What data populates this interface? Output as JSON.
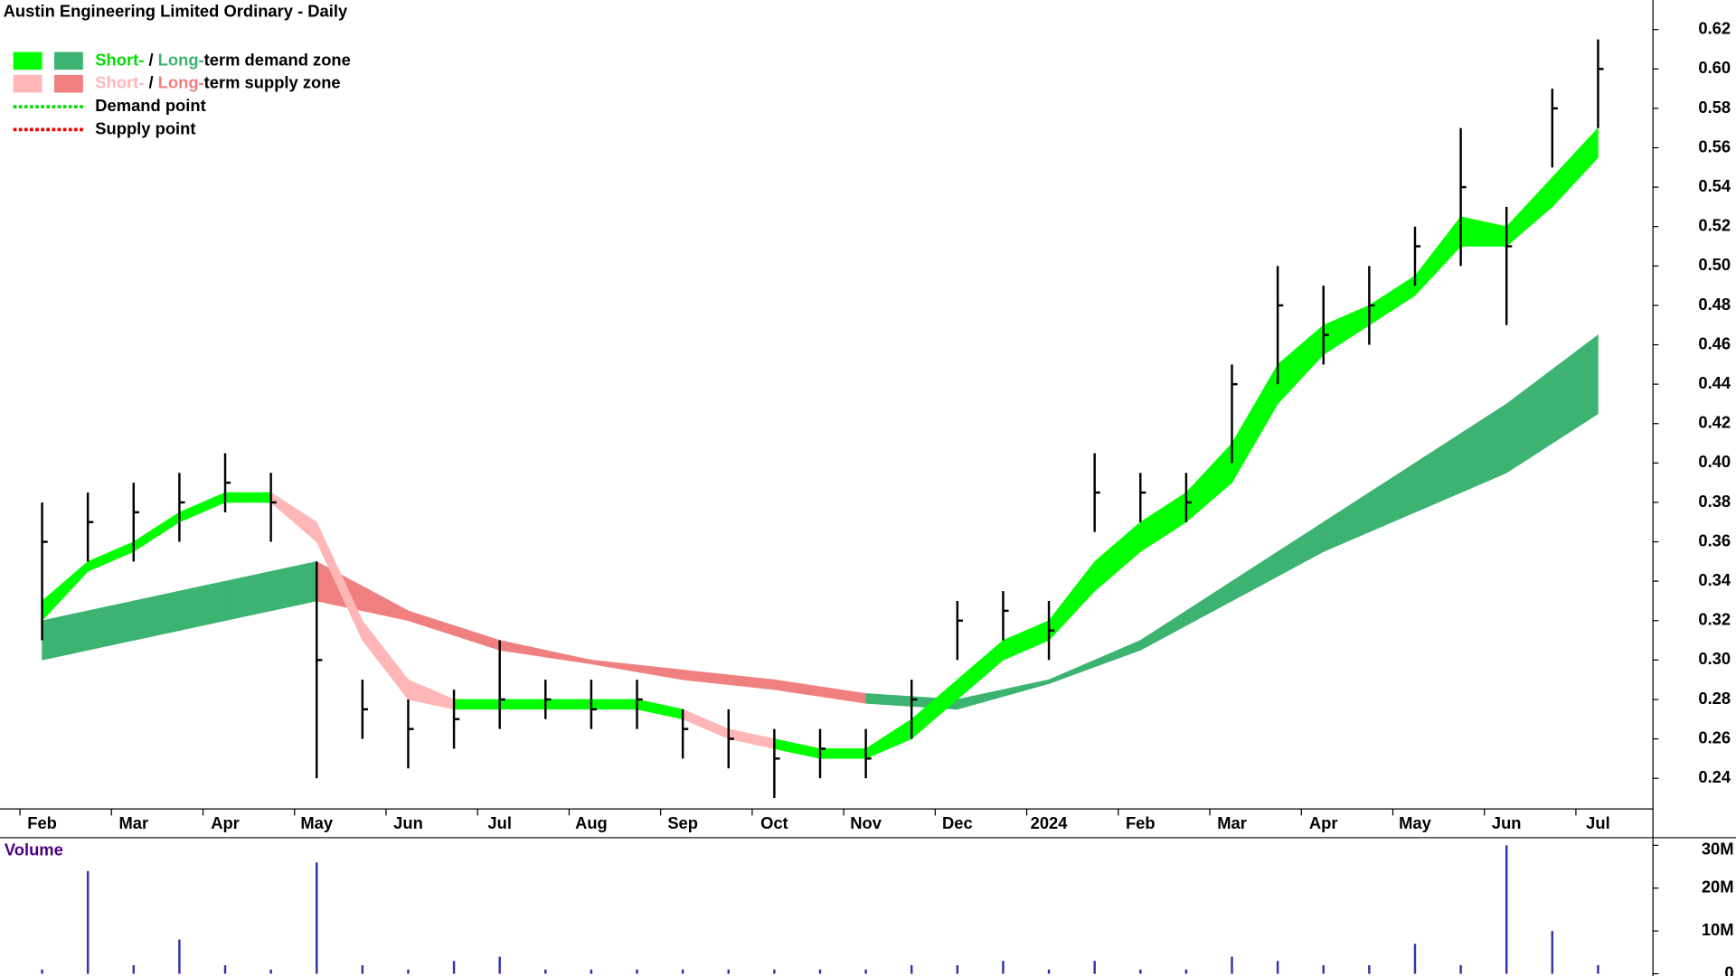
{
  "chart_data": {
    "type": "ohlc",
    "title": "Austin Engineering Limited Ordinary - Daily",
    "legend": [
      {
        "swatches": [
          "#00ff00",
          "#3cb371"
        ],
        "parts": [
          {
            "text": "Short-",
            "color": "#00dd00"
          },
          {
            "text": " / ",
            "color": "#000000"
          },
          {
            "text": "Long-",
            "color": "#3cb371"
          },
          {
            "text": "term demand zone",
            "color": "#000000"
          }
        ]
      },
      {
        "swatches": [
          "#ffb6b6",
          "#f08080"
        ],
        "parts": [
          {
            "text": "Short-",
            "color": "#ffb6b6"
          },
          {
            "text": " / ",
            "color": "#000000"
          },
          {
            "text": "Long-",
            "color": "#f08080"
          },
          {
            "text": "term supply zone",
            "color": "#000000"
          }
        ]
      },
      {
        "dotted": "#00dd00",
        "parts": [
          {
            "text": "Demand point",
            "color": "#000000"
          }
        ]
      },
      {
        "dotted": "#ee0000",
        "parts": [
          {
            "text": "Supply point",
            "color": "#000000"
          }
        ]
      }
    ],
    "xlim": [
      -0.46,
      17.6
    ],
    "xticks": [
      {
        "value": 0,
        "label": "Feb"
      },
      {
        "value": 1,
        "label": "Mar"
      },
      {
        "value": 2,
        "label": "Apr"
      },
      {
        "value": 3,
        "label": "May"
      },
      {
        "value": 4,
        "label": "Jun"
      },
      {
        "value": 5,
        "label": "Jul"
      },
      {
        "value": 6,
        "label": "Aug"
      },
      {
        "value": 7,
        "label": "Sep"
      },
      {
        "value": 8,
        "label": "Oct"
      },
      {
        "value": 9,
        "label": "Nov"
      },
      {
        "value": 10,
        "label": "Dec"
      },
      {
        "value": 11,
        "label": "2024"
      },
      {
        "value": 12,
        "label": "Feb"
      },
      {
        "value": 13,
        "label": "Mar"
      },
      {
        "value": 14,
        "label": "Apr"
      },
      {
        "value": 15,
        "label": "May"
      },
      {
        "value": 16,
        "label": "Jun"
      },
      {
        "value": 17,
        "label": "Jul"
      }
    ],
    "ylim": [
      0.225,
      0.635
    ],
    "yticks": [
      0.24,
      0.26,
      0.28,
      {
        "value": 0.3,
        "label": "0.30"
      },
      0.32,
      0.34,
      0.36,
      0.38,
      {
        "value": 0.4,
        "label": "0.40"
      },
      0.42,
      0.44,
      0.46,
      0.48,
      {
        "value": 0.5,
        "label": "0.50"
      },
      0.52,
      0.54,
      0.56,
      0.58,
      {
        "value": 0.6,
        "label": "0.60"
      },
      0.62
    ],
    "x": [
      0,
      0.5,
      1,
      1.5,
      2,
      2.5,
      3,
      3.5,
      4,
      4.5,
      5,
      5.5,
      6,
      6.5,
      7,
      7.5,
      8,
      8.5,
      9,
      9.5,
      10,
      10.5,
      11,
      11.5,
      12,
      12.5,
      13,
      13.5,
      14,
      14.5,
      15,
      15.5,
      16,
      16.5,
      17
    ],
    "high": [
      0.38,
      0.385,
      0.39,
      0.395,
      0.405,
      0.395,
      0.35,
      0.29,
      0.28,
      0.285,
      0.31,
      0.29,
      0.29,
      0.29,
      0.275,
      0.275,
      0.265,
      0.265,
      0.265,
      0.29,
      0.33,
      0.335,
      0.33,
      0.405,
      0.395,
      0.395,
      0.45,
      0.5,
      0.49,
      0.5,
      0.52,
      0.57,
      0.53,
      0.59,
      0.615
    ],
    "low": [
      0.31,
      0.35,
      0.35,
      0.36,
      0.375,
      0.36,
      0.24,
      0.26,
      0.245,
      0.255,
      0.265,
      0.27,
      0.265,
      0.265,
      0.25,
      0.245,
      0.23,
      0.24,
      0.24,
      0.26,
      0.3,
      0.31,
      0.3,
      0.365,
      0.37,
      0.37,
      0.4,
      0.44,
      0.45,
      0.46,
      0.49,
      0.5,
      0.47,
      0.55,
      0.57
    ],
    "close": [
      0.36,
      0.37,
      0.375,
      0.38,
      0.39,
      0.38,
      0.3,
      0.275,
      0.265,
      0.27,
      0.28,
      0.28,
      0.275,
      0.28,
      0.265,
      0.26,
      0.25,
      0.255,
      0.25,
      0.28,
      0.32,
      0.325,
      0.315,
      0.385,
      0.385,
      0.38,
      0.44,
      0.48,
      0.465,
      0.48,
      0.51,
      0.54,
      0.51,
      0.58,
      0.6
    ],
    "short_zone": {
      "upper": [
        0.33,
        0.35,
        0.36,
        0.375,
        0.385,
        0.385,
        0.37,
        0.32,
        0.29,
        0.28,
        0.28,
        0.28,
        0.28,
        0.28,
        0.275,
        0.265,
        0.26,
        0.255,
        0.255,
        0.27,
        0.29,
        0.31,
        0.32,
        0.35,
        0.37,
        0.385,
        0.41,
        0.45,
        0.47,
        0.48,
        0.495,
        0.525,
        0.52,
        0.545,
        0.57
      ],
      "lower": [
        0.32,
        0.345,
        0.355,
        0.37,
        0.38,
        0.38,
        0.36,
        0.31,
        0.28,
        0.275,
        0.275,
        0.275,
        0.275,
        0.275,
        0.27,
        0.26,
        0.255,
        0.25,
        0.25,
        0.26,
        0.28,
        0.3,
        0.31,
        0.335,
        0.355,
        0.37,
        0.39,
        0.43,
        0.455,
        0.47,
        0.485,
        0.51,
        0.51,
        0.53,
        0.555
      ]
    },
    "long_zone": {
      "x": [
        0,
        1,
        2,
        3,
        4,
        5,
        6,
        7,
        8,
        9,
        10,
        11,
        12,
        13,
        14,
        15,
        16,
        17
      ],
      "upper": [
        0.32,
        0.33,
        0.34,
        0.35,
        0.325,
        0.31,
        0.3,
        0.295,
        0.29,
        0.283,
        0.28,
        0.29,
        0.31,
        0.34,
        0.37,
        0.4,
        0.43,
        0.465
      ],
      "lower": [
        0.3,
        0.31,
        0.32,
        0.33,
        0.32,
        0.305,
        0.298,
        0.29,
        0.285,
        0.278,
        0.275,
        0.288,
        0.305,
        0.33,
        0.355,
        0.375,
        0.395,
        0.425
      ]
    },
    "volume": {
      "label": "Volume",
      "color": "#3333aa",
      "values": [
        1,
        24,
        2,
        8,
        2,
        1,
        26,
        2,
        1,
        3,
        4,
        1,
        1,
        1,
        1,
        1,
        1,
        1,
        1,
        2,
        2,
        3,
        1,
        3,
        1,
        1,
        4,
        3,
        2,
        2,
        7,
        2,
        30,
        10,
        2
      ],
      "ylim": [
        0,
        31
      ],
      "yticks": [
        0,
        {
          "value": 10,
          "label": "10M"
        },
        {
          "value": 20,
          "label": "20M"
        },
        {
          "value": 30,
          "label": "30M"
        }
      ]
    }
  }
}
